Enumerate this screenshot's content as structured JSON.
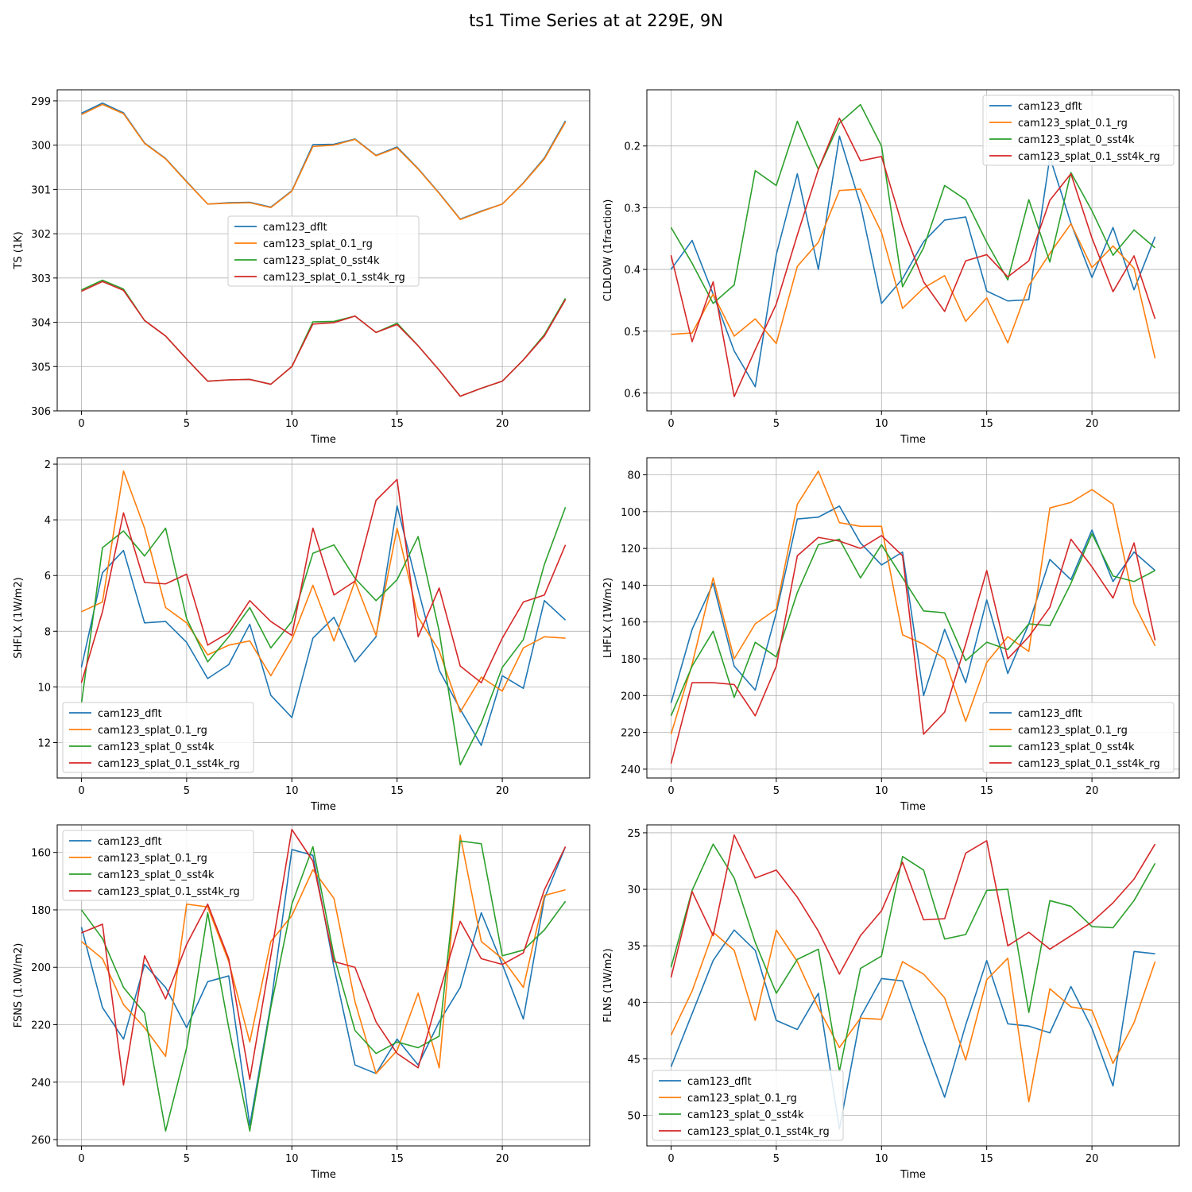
{
  "figure": {
    "title": "ts1 Time Series at at 229E, 9N"
  },
  "colors": {
    "s0": "#1f77b4",
    "s1": "#ff7f0e",
    "s2": "#2ca02c",
    "s3": "#d62728"
  },
  "chart_data": [
    {
      "type": "line",
      "title": "",
      "xlabel": "Time",
      "ylabel": "TS (1K)",
      "xlim": [
        -1.15,
        24.15
      ],
      "ylim": [
        306,
        298.75
      ],
      "inverted_y": true,
      "xticks": [
        0,
        5,
        10,
        15,
        20
      ],
      "yticks": [
        299,
        300,
        301,
        302,
        303,
        304,
        305,
        306
      ],
      "grid": true,
      "legend": "center",
      "x": [
        0,
        1,
        2,
        3,
        4,
        5,
        6,
        7,
        8,
        9,
        10,
        11,
        12,
        13,
        14,
        15,
        16,
        17,
        18,
        19,
        20,
        21,
        22,
        23
      ],
      "series": [
        {
          "name": "cam123_dflt",
          "color": "#1f77b4",
          "values": [
            299.28,
            299.05,
            299.27,
            299.95,
            300.3,
            300.82,
            301.33,
            301.3,
            301.29,
            301.4,
            301.03,
            299.99,
            299.98,
            299.86,
            300.23,
            300.04,
            300.53,
            301.08,
            301.67,
            301.49,
            301.33,
            300.85,
            300.29,
            299.45
          ]
        },
        {
          "name": "cam123_splat_0.1_rg",
          "color": "#ff7f0e",
          "values": [
            299.31,
            299.08,
            299.29,
            299.96,
            300.31,
            300.83,
            301.33,
            301.31,
            301.3,
            301.41,
            301.04,
            300.03,
            300.0,
            299.87,
            300.24,
            300.06,
            300.54,
            301.09,
            301.68,
            301.5,
            301.33,
            300.86,
            300.31,
            299.48
          ]
        },
        {
          "name": "cam123_splat_0_sst4k",
          "color": "#2ca02c",
          "values": [
            303.27,
            303.05,
            303.25,
            303.96,
            304.31,
            304.83,
            305.33,
            305.3,
            305.29,
            305.4,
            305.0,
            303.99,
            303.98,
            303.86,
            304.23,
            304.02,
            304.53,
            305.08,
            305.67,
            305.49,
            305.33,
            304.85,
            304.28,
            303.46
          ]
        },
        {
          "name": "cam123_splat_0.1_sst4k_rg",
          "color": "#d62728",
          "values": [
            303.3,
            303.08,
            303.28,
            303.96,
            304.31,
            304.83,
            305.33,
            305.3,
            305.29,
            305.4,
            305.0,
            304.04,
            304.01,
            303.86,
            304.23,
            304.05,
            304.53,
            305.08,
            305.67,
            305.49,
            305.33,
            304.85,
            304.31,
            303.49
          ]
        }
      ]
    },
    {
      "type": "line",
      "title": "",
      "xlabel": "Time",
      "ylabel": "CLDLOW (1fraction)",
      "xlim": [
        -1.15,
        24.15
      ],
      "ylim": [
        0.629,
        0.109
      ],
      "inverted_y": true,
      "xticks": [
        0,
        5,
        10,
        15,
        20
      ],
      "yticks": [
        0.2,
        0.3,
        0.4,
        0.5,
        0.6
      ],
      "grid": true,
      "legend": "upper right",
      "x": [
        0,
        1,
        2,
        3,
        4,
        5,
        6,
        7,
        8,
        9,
        10,
        11,
        12,
        13,
        14,
        15,
        16,
        17,
        18,
        19,
        20,
        21,
        22,
        23
      ],
      "series": [
        {
          "name": "cam123_dflt",
          "color": "#1f77b4",
          "values": [
            0.4,
            0.353,
            0.44,
            0.532,
            0.59,
            0.376,
            0.245,
            0.4,
            0.184,
            0.295,
            0.455,
            0.415,
            0.355,
            0.32,
            0.315,
            0.435,
            0.451,
            0.449,
            0.218,
            0.325,
            0.413,
            0.332,
            0.433,
            0.347
          ]
        },
        {
          "name": "cam123_splat_0.1_rg",
          "color": "#ff7f0e",
          "values": [
            0.505,
            0.503,
            0.44,
            0.508,
            0.48,
            0.52,
            0.395,
            0.356,
            0.272,
            0.27,
            0.34,
            0.463,
            0.43,
            0.41,
            0.484,
            0.446,
            0.519,
            0.426,
            0.374,
            0.326,
            0.397,
            0.362,
            0.398,
            0.544
          ]
        },
        {
          "name": "cam123_splat_0_sst4k",
          "color": "#2ca02c",
          "values": [
            0.332,
            0.39,
            0.455,
            0.425,
            0.24,
            0.264,
            0.16,
            0.238,
            0.163,
            0.133,
            0.2,
            0.428,
            0.365,
            0.264,
            0.287,
            0.356,
            0.417,
            0.287,
            0.388,
            0.243,
            0.305,
            0.377,
            0.336,
            0.365
          ]
        },
        {
          "name": "cam123_splat_0.1_sst4k_rg",
          "color": "#d62728",
          "values": [
            0.377,
            0.517,
            0.42,
            0.606,
            0.53,
            0.456,
            0.344,
            0.238,
            0.155,
            0.224,
            0.217,
            0.33,
            0.42,
            0.468,
            0.386,
            0.376,
            0.412,
            0.386,
            0.288,
            0.245,
            0.349,
            0.436,
            0.378,
            0.48
          ]
        }
      ]
    },
    {
      "type": "line",
      "title": "",
      "xlabel": "Time",
      "ylabel": "SHFLX (1W/m2)",
      "xlim": [
        -1.15,
        24.15
      ],
      "ylim": [
        13.27,
        1.77
      ],
      "inverted_y": true,
      "xticks": [
        0,
        5,
        10,
        15,
        20
      ],
      "yticks": [
        2,
        4,
        6,
        8,
        10,
        12
      ],
      "grid": true,
      "legend": "lower left",
      "x": [
        0,
        1,
        2,
        3,
        4,
        5,
        6,
        7,
        8,
        9,
        10,
        11,
        12,
        13,
        14,
        15,
        16,
        17,
        18,
        19,
        20,
        21,
        22,
        23
      ],
      "series": [
        {
          "name": "cam123_dflt",
          "color": "#1f77b4",
          "values": [
            9.3,
            5.9,
            5.1,
            7.7,
            7.65,
            8.4,
            9.7,
            9.2,
            7.75,
            10.3,
            11.1,
            8.25,
            7.5,
            9.1,
            8.2,
            3.5,
            6.5,
            9.4,
            10.8,
            12.1,
            9.6,
            10.05,
            6.9,
            7.6
          ]
        },
        {
          "name": "cam123_splat_0.1_rg",
          "color": "#ff7f0e",
          "values": [
            7.3,
            6.95,
            2.25,
            4.3,
            7.15,
            7.7,
            8.85,
            8.5,
            8.35,
            9.6,
            8.3,
            6.35,
            8.35,
            6.2,
            8.15,
            4.3,
            7.5,
            8.7,
            10.9,
            9.65,
            10.15,
            8.6,
            8.2,
            8.25
          ]
        },
        {
          "name": "cam123_splat_0_sst4k",
          "color": "#2ca02c",
          "values": [
            10.6,
            5.0,
            4.4,
            5.3,
            4.3,
            7.55,
            9.1,
            8.2,
            7.15,
            8.6,
            7.65,
            5.2,
            4.9,
            6.1,
            6.9,
            6.15,
            4.6,
            8.0,
            12.8,
            11.3,
            9.3,
            8.3,
            5.6,
            3.55
          ]
        },
        {
          "name": "cam123_splat_0.1_sst4k_rg",
          "color": "#d62728",
          "values": [
            9.85,
            7.3,
            3.75,
            6.25,
            6.3,
            5.95,
            8.5,
            8.05,
            6.9,
            7.65,
            8.15,
            4.3,
            6.7,
            6.2,
            3.3,
            2.55,
            8.2,
            6.45,
            9.25,
            9.85,
            8.25,
            6.95,
            6.7,
            4.9
          ]
        }
      ]
    },
    {
      "type": "line",
      "title": "",
      "xlabel": "Time",
      "ylabel": "LHFLX (1W/m2)",
      "xlim": [
        -1.15,
        24.15
      ],
      "ylim": [
        244.8,
        70.7
      ],
      "inverted_y": true,
      "xticks": [
        0,
        5,
        10,
        15,
        20
      ],
      "yticks": [
        80,
        100,
        120,
        140,
        160,
        180,
        200,
        220,
        240
      ],
      "grid": true,
      "legend": "lower right",
      "x": [
        0,
        1,
        2,
        3,
        4,
        5,
        6,
        7,
        8,
        9,
        10,
        11,
        12,
        13,
        14,
        15,
        16,
        17,
        18,
        19,
        20,
        21,
        22,
        23
      ],
      "series": [
        {
          "name": "cam123_dflt",
          "color": "#1f77b4",
          "values": [
            204,
            164,
            139,
            184,
            197,
            155,
            104,
            103,
            97,
            117,
            129,
            122,
            200,
            164,
            193,
            148,
            188,
            161,
            126,
            137,
            110,
            138,
            122,
            132
          ]
        },
        {
          "name": "cam123_splat_0.1_rg",
          "color": "#ff7f0e",
          "values": [
            221,
            183,
            136,
            180,
            161,
            153,
            96,
            78,
            106,
            108,
            108,
            167,
            172,
            180,
            214,
            182,
            168,
            176,
            98,
            95,
            88,
            96,
            150,
            173
          ]
        },
        {
          "name": "cam123_splat_0_sst4k",
          "color": "#2ca02c",
          "values": [
            211,
            184,
            165,
            201,
            171,
            179,
            144,
            118,
            115,
            136,
            118,
            136,
            154,
            155,
            181,
            171,
            175,
            161,
            162,
            139,
            112,
            135,
            138,
            132
          ]
        },
        {
          "name": "cam123_splat_0.1_sst4k_rg",
          "color": "#d62728",
          "values": [
            237,
            193,
            193,
            194,
            211,
            184,
            124,
            114,
            116,
            120,
            113,
            124,
            221,
            209,
            172,
            132,
            180,
            168,
            152,
            115,
            130,
            147,
            117,
            170
          ]
        }
      ]
    },
    {
      "type": "line",
      "title": "",
      "xlabel": "Time",
      "ylabel": "FSNS (1.0W/m2)",
      "xlim": [
        -1.15,
        24.15
      ],
      "ylim": [
        262.2,
        150.4
      ],
      "inverted_y": true,
      "xticks": [
        0,
        5,
        10,
        15,
        20
      ],
      "yticks": [
        160,
        180,
        200,
        220,
        240,
        260
      ],
      "grid": true,
      "legend": "upper left",
      "x": [
        0,
        1,
        2,
        3,
        4,
        5,
        6,
        7,
        8,
        9,
        10,
        11,
        12,
        13,
        14,
        15,
        16,
        17,
        18,
        19,
        20,
        21,
        22,
        23
      ],
      "series": [
        {
          "name": "cam123_dflt",
          "color": "#1f77b4",
          "values": [
            186,
            214,
            225,
            199,
            207,
            221,
            205,
            203,
            255,
            213,
            159,
            161,
            200,
            234,
            237,
            225,
            234,
            219,
            207,
            181,
            199,
            218,
            176,
            158
          ]
        },
        {
          "name": "cam123_splat_0.1_rg",
          "color": "#ff7f0e",
          "values": [
            191,
            197,
            213,
            221,
            231,
            178,
            179,
            198,
            226,
            191,
            182,
            166,
            176,
            212,
            237,
            229,
            209,
            235,
            154,
            191,
            197,
            207,
            175,
            173
          ]
        },
        {
          "name": "cam123_splat_0_sst4k",
          "color": "#2ca02c",
          "values": [
            180,
            190,
            207,
            216,
            257,
            228,
            181,
            221,
            257,
            214,
            178,
            158,
            196,
            222,
            230,
            226,
            228,
            224,
            156,
            157,
            196,
            194,
            187,
            177
          ]
        },
        {
          "name": "cam123_splat_0.1_sst4k_rg",
          "color": "#d62728",
          "values": [
            188,
            185,
            241,
            196,
            211,
            192,
            178,
            197,
            239,
            196,
            152,
            163,
            198,
            200,
            219,
            230,
            235,
            209,
            184,
            197,
            199,
            195,
            173,
            158
          ]
        }
      ]
    },
    {
      "type": "line",
      "title": "",
      "xlabel": "Time",
      "ylabel": "FLNS (1W/m2)",
      "xlim": [
        -1.15,
        24.15
      ],
      "ylim": [
        52.7,
        24.3
      ],
      "inverted_y": true,
      "xticks": [
        0,
        5,
        10,
        15,
        20
      ],
      "yticks": [
        25,
        30,
        35,
        40,
        45,
        50
      ],
      "grid": true,
      "legend": "lower left",
      "x": [
        0,
        1,
        2,
        3,
        4,
        5,
        6,
        7,
        8,
        9,
        10,
        11,
        12,
        13,
        14,
        15,
        16,
        17,
        18,
        19,
        20,
        21,
        22,
        23
      ],
      "series": [
        {
          "name": "cam123_dflt",
          "color": "#1f77b4",
          "values": [
            45.7,
            41.0,
            36.3,
            33.6,
            35.4,
            41.6,
            42.4,
            39.2,
            51.2,
            41.3,
            37.9,
            38.1,
            43.4,
            48.4,
            42.0,
            36.3,
            41.9,
            42.1,
            42.7,
            38.6,
            42.3,
            47.4,
            35.5,
            35.7
          ]
        },
        {
          "name": "cam123_splat_0.1_rg",
          "color": "#ff7f0e",
          "values": [
            42.9,
            39.0,
            33.8,
            35.4,
            41.6,
            33.6,
            36.4,
            40.5,
            44.0,
            41.4,
            41.5,
            36.4,
            37.5,
            39.6,
            45.1,
            38.0,
            36.1,
            48.8,
            38.8,
            40.4,
            40.7,
            45.4,
            41.8,
            36.4
          ]
        },
        {
          "name": "cam123_splat_0_sst4k",
          "color": "#2ca02c",
          "values": [
            36.9,
            30.1,
            26.0,
            29.0,
            34.7,
            39.2,
            36.2,
            35.3,
            46.1,
            37.0,
            35.9,
            27.1,
            28.3,
            34.4,
            34.0,
            30.1,
            30.0,
            40.9,
            31.0,
            31.5,
            33.3,
            33.4,
            31.0,
            27.7
          ]
        },
        {
          "name": "cam123_splat_0.1_sst4k_rg",
          "color": "#d62728",
          "values": [
            37.8,
            30.2,
            34.1,
            25.2,
            29.0,
            28.3,
            30.7,
            33.7,
            37.5,
            34.1,
            31.9,
            27.6,
            32.7,
            32.6,
            26.8,
            25.7,
            35.0,
            33.8,
            35.3,
            34.1,
            32.9,
            31.2,
            29.1,
            26.0
          ]
        }
      ]
    }
  ]
}
